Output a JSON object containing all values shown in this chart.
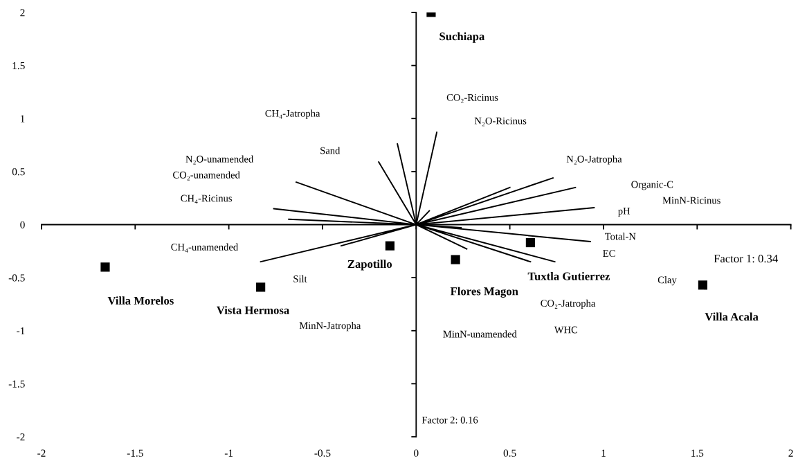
{
  "chart_data": {
    "type": "scatter",
    "xlim": [
      -2,
      2
    ],
    "ylim": [
      -2,
      2
    ],
    "xticks": [
      -2,
      -1.5,
      -1,
      -0.5,
      0,
      0.5,
      1,
      1.5,
      2
    ],
    "yticks": [
      -2,
      -1.5,
      -1,
      -0.5,
      0,
      0.5,
      1,
      1.5,
      2
    ],
    "marker": "square",
    "series": [
      {
        "name": "Suchiapa",
        "color": "#000000",
        "x": [
          0.08
        ],
        "values": [
          2.0
        ]
      },
      {
        "name": "Zapotillo",
        "color": "#000000",
        "x": [
          -0.14
        ],
        "values": [
          -0.2
        ]
      },
      {
        "name": "Villa Morelos",
        "color": "#000000",
        "x": [
          -1.66
        ],
        "values": [
          -0.4
        ]
      },
      {
        "name": "Vista Hermosa",
        "color": "#000000",
        "x": [
          -0.83
        ],
        "values": [
          -0.59
        ]
      },
      {
        "name": "Flores Magon",
        "color": "#000000",
        "x": [
          0.21
        ],
        "values": [
          -0.33
        ]
      },
      {
        "name": "Tuxtla Gutierrez",
        "color": "#000000",
        "x": [
          0.61
        ],
        "values": [
          -0.17
        ]
      },
      {
        "name": "Villa Acala",
        "color": "#000000",
        "x": [
          1.53
        ],
        "values": [
          -0.57
        ]
      },
      {
        "type": "line",
        "marker": "none",
        "color": "#000000",
        "x": [
          0,
          -0.1,
          null,
          0,
          -0.2,
          null,
          0,
          -0.64,
          null,
          0,
          -0.76,
          null,
          0,
          -0.68,
          null,
          0,
          -0.83,
          null,
          0,
          -0.4,
          null,
          0,
          0.11,
          null,
          0,
          0.07,
          null,
          0,
          0.5,
          null,
          0,
          0.73,
          null,
          0,
          0.85,
          null,
          0,
          0.95,
          null,
          0,
          0.24,
          null,
          0,
          0.93,
          null,
          0,
          0.27,
          null,
          0,
          0.61,
          null,
          0,
          0.74
        ],
        "values": [
          0,
          0.76,
          null,
          0,
          0.59,
          null,
          0,
          0.4,
          null,
          0,
          0.15,
          null,
          0,
          0.05,
          null,
          0,
          -0.35,
          null,
          0,
          -0.2,
          null,
          0,
          0.87,
          null,
          0,
          0.13,
          null,
          0,
          0.35,
          null,
          0,
          0.44,
          null,
          0,
          0.35,
          null,
          0,
          0.16,
          null,
          0,
          -0.03,
          null,
          0,
          -0.16,
          null,
          0,
          -0.23,
          null,
          0,
          -0.35,
          null,
          0,
          -0.35
        ]
      }
    ],
    "annotations": [
      "CH₄-Jatropha",
      "Sand",
      "N₂O-unamended",
      "CO₂-unamended",
      "CH₄-Ricinus",
      "CH₄-unamended",
      "Silt",
      "MinN-Jatropha",
      "CO₂-Ricinus",
      "N₂O-Ricinus",
      "N₂O-Jatropha",
      "Organic-C",
      "MinN-Ricinus",
      "pH",
      "Total-N",
      "EC",
      "Clay",
      "CO₂-Jatropha",
      "WHC",
      "MinN-unamended",
      "Factor 1: 0.34",
      "Factor 2: 0.16"
    ]
  }
}
